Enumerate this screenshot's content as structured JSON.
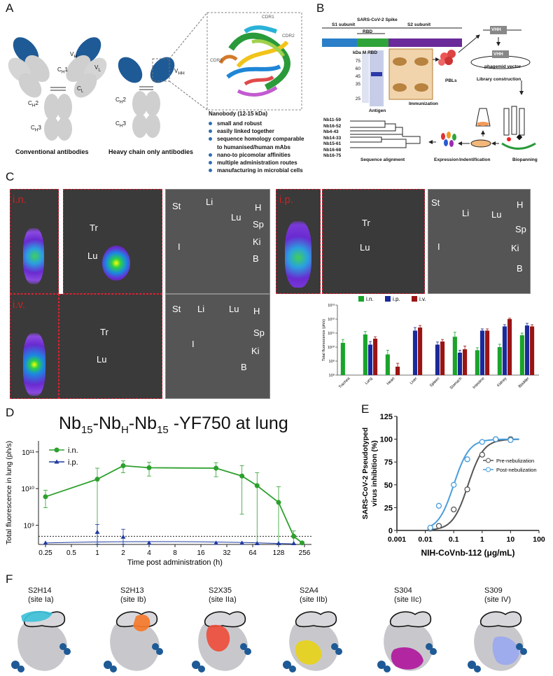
{
  "panels": {
    "a": "A",
    "b": "B",
    "c": "C",
    "d": "D",
    "e": "E",
    "f": "F"
  },
  "panelA": {
    "conv_labels": [
      "Vₕ",
      "Vₗ",
      "Cₕ1",
      "Cₗ",
      "Cₕ2",
      "Cₕ3"
    ],
    "vh": "V",
    "vh_sub": "H",
    "vl": "V",
    "vl_sub": "L",
    "ch1": "C",
    "ch1_sub": "H",
    "ch1_num": "1",
    "cl": "C",
    "cl_sub": "L",
    "ch2": "C",
    "ch2_sub": "H",
    "ch2_num": "2",
    "ch3": "C",
    "ch3_sub": "H",
    "ch3_num": "3",
    "vhh": "V",
    "vhh_sub": "HH",
    "cdr1": "CDR1",
    "cdr2": "CDR2",
    "cdr3": "CDR3",
    "conv_caption": "Conventional antibodies",
    "hc_caption": "Heavy chain only antibodies",
    "nb_title": "Nanobody (12-15 kDa)",
    "nb_bullets": [
      "small and robust",
      "easily linked together",
      "sequence homology comparable",
      "to humanised/human mAbs",
      "nano-to picomolar affinities",
      "multiple administration routes",
      "manufacturing in microbial cells"
    ]
  },
  "panelB": {
    "spike_title": "SARS-CoV-2  Spike",
    "s1": "S1 subunit",
    "rbd": "RBD",
    "s2": "S2 subunit",
    "gel_header": "kDa M   RBD",
    "kda": [
      "75",
      "60",
      "45",
      "35",
      "25"
    ],
    "antigen": "Antigen",
    "immunization": "Immunization",
    "pbls": "PBLs",
    "vhh": "VHH",
    "vhh2": "VHH",
    "phagemid": "phagemid vector",
    "library": "Library construction",
    "biopanning": "Biopanning",
    "identification": "Indentification",
    "expression": "Expression",
    "seq_align": "Sequence alignment",
    "clones": [
      "Nb11-59",
      "Nb16-52",
      "Nb4-43",
      "Nb14-33",
      "Nb15-61",
      "Nb16-68",
      "Nb16-75"
    ]
  },
  "panelC": {
    "routes": [
      "i.n.",
      "i.p.",
      "i.v."
    ],
    "organs_in": [
      "Tr",
      "Lu",
      "St",
      "Li",
      "H",
      "Lu",
      "Sp",
      "I",
      "Ki",
      "B"
    ],
    "organs_ip": [
      "Tr",
      "Lu",
      "St",
      "Li",
      "H",
      "Lu",
      "Sp",
      "I",
      "Ki",
      "B"
    ],
    "organs_iv": [
      "Tr",
      "Lu",
      "St",
      "Li",
      "Lu",
      "H",
      "Sp",
      "I",
      "Ki",
      "B"
    ]
  },
  "chart_data": [
    {
      "id": "C-bar",
      "type": "bar",
      "ylabel": "Total fluorescence (ph/s)",
      "yscale": "log",
      "ylim": [
        100000000.0,
        10000000000000.0
      ],
      "ytick_labels": [
        "10⁸",
        "10⁹",
        "10¹⁰",
        "10¹¹",
        "10¹²",
        "10¹³"
      ],
      "categories": [
        "Trachea",
        "Lung",
        "Heart",
        "Liver",
        "Spleen",
        "Stomach",
        "Intestine",
        "Kidney",
        "Bladder"
      ],
      "series": [
        {
          "name": "i.n.",
          "color": "#1aa42a",
          "values": [
            20000000000.0,
            80000000000.0,
            3000000000.0,
            null,
            null,
            55000000000.0,
            6000000000.0,
            10000000000.0,
            70000000000.0
          ],
          "err": [
            15000000000.0,
            50000000000.0,
            3000000000.0,
            null,
            null,
            60000000000.0,
            3000000000.0,
            6000000000.0,
            30000000000.0
          ]
        },
        {
          "name": "i.p.",
          "color": "#1a2a9a",
          "values": [
            null,
            15000000000.0,
            null,
            150000000000.0,
            15000000000.0,
            4000000000.0,
            150000000000.0,
            300000000000.0,
            350000000000.0
          ],
          "err": [
            null,
            10000000000.0,
            null,
            100000000000.0,
            8000000000.0,
            2000000000.0,
            50000000000.0,
            100000000000.0,
            150000000000.0
          ]
        },
        {
          "name": "i.v.",
          "color": "#9a1414",
          "values": [
            null,
            40000000000.0,
            400000000.0,
            250000000000.0,
            25000000000.0,
            7000000000.0,
            150000000000.0,
            1000000000000.0,
            300000000000.0
          ],
          "err": [
            null,
            15000000000.0,
            300000000.0,
            100000000000.0,
            10000000000.0,
            5000000000.0,
            50000000000.0,
            150000000000.0,
            100000000000.0
          ]
        }
      ],
      "legend": "top"
    },
    {
      "id": "D-line",
      "type": "line",
      "title_parts": [
        "Nb",
        "15",
        "-Nb",
        "H",
        "-Nb",
        "15",
        " -YF750 at lung"
      ],
      "xlabel": "Time post administration (h)",
      "ylabel": "Total fluorescence in lung (ph/s)",
      "xscale": "log2",
      "xticks": [
        "0.25",
        "0.5",
        "1",
        "2",
        "4",
        "8",
        "16",
        "32",
        "64",
        "128",
        "256"
      ],
      "yscale": "log",
      "ylim": [
        300000000.0,
        200000000000.0
      ],
      "ytick_labels": [
        "10⁹",
        "10¹⁰",
        "10¹¹"
      ],
      "threshold": 500000000.0,
      "series": [
        {
          "name": "i.n.",
          "color": "#2ca02c",
          "x": [
            0.25,
            1,
            2,
            4,
            24,
            48,
            72,
            128,
            192,
            240
          ],
          "values": [
            6000000000.0,
            18000000000.0,
            42000000000.0,
            37000000000.0,
            36000000000.0,
            22000000000.0,
            12000000000.0,
            4200000000.0,
            500000000.0,
            330000000.0
          ],
          "err": [
            3000000000.0,
            18000000000.0,
            15000000000.0,
            15000000000.0,
            15000000000.0,
            20000000000.0,
            15000000000.0,
            7000000000.0,
            200000000.0,
            0
          ]
        },
        {
          "name": "i.p.",
          "color": "#1f3aa0",
          "x": [
            0.25,
            1,
            2,
            4,
            24,
            48,
            72,
            128,
            192
          ],
          "values": [
            330000000.0,
            650000000.0,
            480000000.0,
            330000000.0,
            330000000.0,
            330000000.0,
            320000000.0,
            320000000.0,
            320000000.0
          ],
          "err": [
            0,
            400000000.0,
            300000000.0,
            0,
            0,
            0,
            0,
            0,
            0
          ]
        }
      ],
      "legend": "top-left"
    },
    {
      "id": "E-curve",
      "type": "scatter",
      "ylabel": "SARS-CoV-2 Pseudotyped virus inhibition (%)",
      "xlabel": "NIH-CoVnb-112 (μg/mL)",
      "xscale": "log",
      "xticks": [
        "0.001",
        "0.01",
        "0.1",
        "1",
        "10",
        "100"
      ],
      "yticks": [
        "0",
        "25",
        "50",
        "75",
        "100",
        "125"
      ],
      "ylim": [
        0,
        125
      ],
      "series": [
        {
          "name": "Pre-nebulization",
          "color": "#555555",
          "x": [
            0.015,
            0.03,
            0.1,
            0.3,
            1,
            3,
            10
          ],
          "values": [
            2,
            5,
            23,
            45,
            83,
            100,
            100
          ]
        },
        {
          "name": "Post-nebulization",
          "color": "#4a9edc",
          "x": [
            0.015,
            0.03,
            0.1,
            0.3,
            1,
            3,
            10
          ],
          "values": [
            3,
            27,
            50,
            78,
            97,
            100,
            99
          ]
        }
      ],
      "legend": "right"
    }
  ],
  "legendC": [
    "i.n.",
    "i.p.",
    "i.v."
  ],
  "legendD": [
    "i.n.",
    "i.p."
  ],
  "legendE": [
    "Pre-nebulization",
    "Post-nebulization"
  ],
  "panelF": {
    "items": [
      {
        "name": "S2H14",
        "site": "(site Ia)",
        "color": "#3fc1d8"
      },
      {
        "name": "S2H13",
        "site": "(site Ib)",
        "color": "#f57a2a"
      },
      {
        "name": "S2X35",
        "site": "(site IIa)",
        "color": "#ee4e3c"
      },
      {
        "name": "S2A4",
        "site": "(site IIb)",
        "color": "#e6d21a"
      },
      {
        "name": "S304",
        "site": "(site IIc)",
        "color": "#b0199d"
      },
      {
        "name": "S309",
        "site": "(site IV)",
        "color": "#9aa8f0"
      }
    ]
  }
}
